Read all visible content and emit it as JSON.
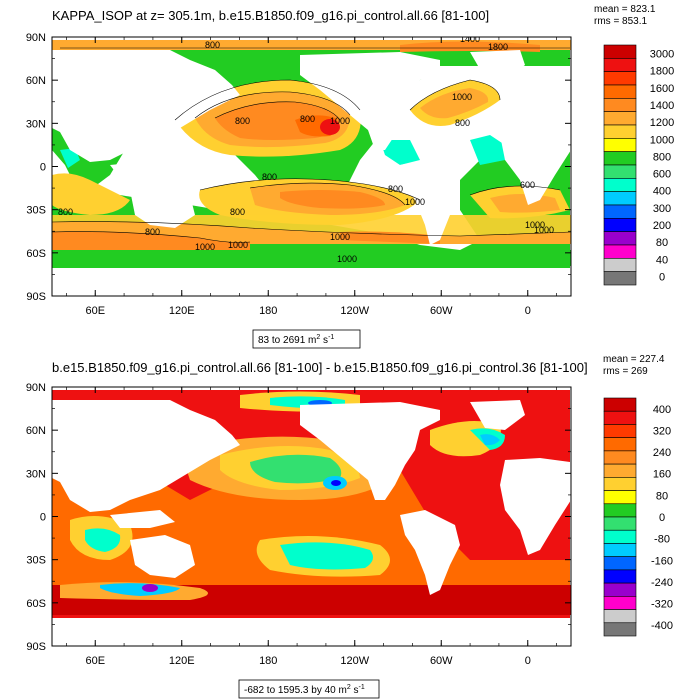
{
  "panels": [
    {
      "title": "KAPPA_ISOP at z= 305.1m, b.e15.B1850.f09_g16.pi_control.all.66 [81-100]",
      "mean_text": "mean = 823.1",
      "rms_text": "rms = 853.1",
      "range_text": "83 to 2691 m",
      "range_sup1": "2",
      "range_mid": " s",
      "range_sup2": "-1",
      "contour_labels": [
        "800",
        "800",
        "800",
        "800",
        "800",
        "800",
        "1000",
        "1000",
        "1000",
        "1000",
        "1000",
        "1000",
        "1000",
        "800",
        "600",
        "1400",
        "1800",
        "800",
        "1000",
        "800",
        "1000"
      ]
    },
    {
      "title": "b.e15.B1850.f09_g16.pi_control.all.66 [81-100] - b.e15.B1850.f09_g16.pi_control.36 [81-100]",
      "mean_text": "mean = 227.4",
      "rms_text": "rms = 269",
      "range_text": "-682 to 1595.3 by 40 m",
      "range_sup1": "2",
      "range_mid": " s",
      "range_sup2": "-1",
      "contour_labels": []
    }
  ],
  "chart_data": [
    {
      "type": "heatmap",
      "title": "KAPPA_ISOP at z= 305.1m, b.e15.B1850.f09_g16.pi_control.all.66 [81-100]",
      "x_tick_labels": [
        "60E",
        "120E",
        "180",
        "120W",
        "60W",
        "0"
      ],
      "x_tick_lons": [
        60,
        120,
        180,
        240,
        300,
        360
      ],
      "y_tick_labels": [
        "90N",
        "60N",
        "30N",
        "0",
        "30S",
        "60S",
        "90S"
      ],
      "y_tick_lats": [
        90,
        60,
        30,
        0,
        -30,
        -60,
        -90
      ],
      "xlim": [
        30,
        390
      ],
      "ylim": [
        -90,
        90
      ],
      "colorbar": {
        "labels": [
          "3000",
          "1800",
          "1600",
          "1400",
          "1200",
          "1000",
          "800",
          "600",
          "400",
          "300",
          "200",
          "80",
          "40",
          "0"
        ],
        "colors": [
          "#cc0000",
          "#ee1111",
          "#ff3a00",
          "#ff6a00",
          "#ff8a20",
          "#ffaa30",
          "#ffd030",
          "#ffff00",
          "#22cc22",
          "#33e070",
          "#00ffcc",
          "#00ccff",
          "#0066ff",
          "#0000ff",
          "#9900cc",
          "#ff00cc",
          "#cccccc",
          "#777777"
        ]
      },
      "stats": {
        "mean": 823.1,
        "rms": 853.1,
        "min": 83,
        "max": 2691,
        "units": "m2 s-1"
      }
    },
    {
      "type": "heatmap",
      "title": "b.e15.B1850.f09_g16.pi_control.all.66 [81-100] - b.e15.B1850.f09_g16.pi_control.36 [81-100]",
      "x_tick_labels": [
        "60E",
        "120E",
        "180",
        "120W",
        "60W",
        "0"
      ],
      "x_tick_lons": [
        60,
        120,
        180,
        240,
        300,
        360
      ],
      "y_tick_labels": [
        "90N",
        "60N",
        "30N",
        "0",
        "30S",
        "60S",
        "90S"
      ],
      "y_tick_lats": [
        90,
        60,
        30,
        0,
        -30,
        -60,
        -90
      ],
      "xlim": [
        30,
        390
      ],
      "ylim": [
        -90,
        90
      ],
      "colorbar": {
        "labels": [
          "400",
          "320",
          "240",
          "160",
          "80",
          "0",
          "-80",
          "-160",
          "-240",
          "-320",
          "-400"
        ],
        "colors": [
          "#cc0000",
          "#ee1111",
          "#ff3a00",
          "#ff6a00",
          "#ff8a20",
          "#ffaa30",
          "#ffd030",
          "#ffff00",
          "#22cc22",
          "#33e070",
          "#00ffcc",
          "#00ccff",
          "#0066ff",
          "#0000ff",
          "#9900cc",
          "#ff00cc",
          "#cccccc",
          "#777777"
        ]
      },
      "stats": {
        "mean": 227.4,
        "rms": 269,
        "min": -682,
        "max": 1595.3,
        "interval": 40,
        "units": "m2 s-1"
      }
    }
  ]
}
